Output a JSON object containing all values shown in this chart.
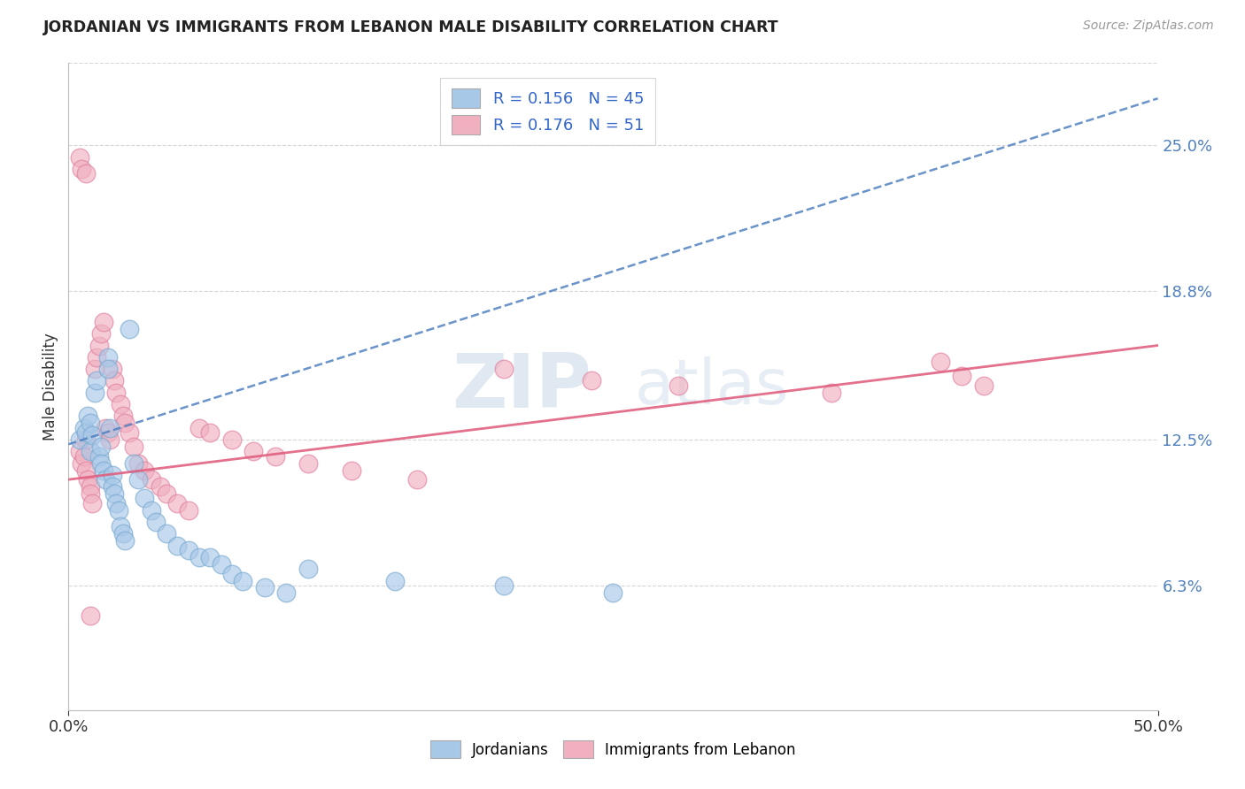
{
  "title": "JORDANIAN VS IMMIGRANTS FROM LEBANON MALE DISABILITY CORRELATION CHART",
  "source": "Source: ZipAtlas.com",
  "ylabel": "Male Disability",
  "y_ticks": [
    0.063,
    0.125,
    0.188,
    0.25
  ],
  "y_tick_labels": [
    "6.3%",
    "12.5%",
    "18.8%",
    "25.0%"
  ],
  "xlim": [
    0.0,
    0.5
  ],
  "ylim": [
    0.01,
    0.285
  ],
  "series1_name": "Jordanians",
  "series1_color": "#a8c8e8",
  "series1_edge_color": "#7aaad0",
  "series1_line_color": "#5080c0",
  "series1_line_style": "--",
  "series1_R": 0.156,
  "series1_N": 45,
  "series2_name": "Immigrants from Lebanon",
  "series2_color": "#f0b0c0",
  "series2_edge_color": "#e080a0",
  "series2_line_color": "#e06080",
  "series2_line_style": "-",
  "series2_R": 0.176,
  "series2_N": 51,
  "watermark_top": "ZIP",
  "watermark_bottom": "atlas",
  "background_color": "#ffffff",
  "grid_color": "#cccccc",
  "tick_color": "#5080c0",
  "jordanians_x": [
    0.005,
    0.007,
    0.008,
    0.009,
    0.01,
    0.01,
    0.011,
    0.012,
    0.013,
    0.014,
    0.015,
    0.015,
    0.016,
    0.017,
    0.018,
    0.018,
    0.019,
    0.02,
    0.02,
    0.021,
    0.022,
    0.023,
    0.024,
    0.025,
    0.026,
    0.028,
    0.03,
    0.032,
    0.035,
    0.038,
    0.04,
    0.045,
    0.05,
    0.055,
    0.06,
    0.065,
    0.07,
    0.075,
    0.08,
    0.09,
    0.1,
    0.11,
    0.15,
    0.2,
    0.25
  ],
  "jordanians_y": [
    0.125,
    0.13,
    0.128,
    0.135,
    0.132,
    0.12,
    0.127,
    0.145,
    0.15,
    0.118,
    0.122,
    0.115,
    0.112,
    0.108,
    0.16,
    0.155,
    0.13,
    0.11,
    0.105,
    0.102,
    0.098,
    0.095,
    0.088,
    0.085,
    0.082,
    0.172,
    0.115,
    0.108,
    0.1,
    0.095,
    0.09,
    0.085,
    0.08,
    0.078,
    0.075,
    0.075,
    0.072,
    0.068,
    0.065,
    0.062,
    0.06,
    0.07,
    0.065,
    0.063,
    0.06
  ],
  "lebanon_x": [
    0.005,
    0.006,
    0.007,
    0.008,
    0.008,
    0.009,
    0.01,
    0.01,
    0.011,
    0.012,
    0.013,
    0.014,
    0.015,
    0.016,
    0.017,
    0.018,
    0.019,
    0.02,
    0.021,
    0.022,
    0.024,
    0.025,
    0.026,
    0.028,
    0.03,
    0.032,
    0.035,
    0.038,
    0.042,
    0.045,
    0.05,
    0.055,
    0.06,
    0.065,
    0.075,
    0.085,
    0.095,
    0.11,
    0.13,
    0.16,
    0.2,
    0.24,
    0.28,
    0.35,
    0.4,
    0.41,
    0.42,
    0.005,
    0.006,
    0.008,
    0.01
  ],
  "lebanon_y": [
    0.12,
    0.115,
    0.118,
    0.112,
    0.125,
    0.108,
    0.105,
    0.102,
    0.098,
    0.155,
    0.16,
    0.165,
    0.17,
    0.175,
    0.13,
    0.128,
    0.125,
    0.155,
    0.15,
    0.145,
    0.14,
    0.135,
    0.132,
    0.128,
    0.122,
    0.115,
    0.112,
    0.108,
    0.105,
    0.102,
    0.098,
    0.095,
    0.13,
    0.128,
    0.125,
    0.12,
    0.118,
    0.115,
    0.112,
    0.108,
    0.155,
    0.15,
    0.148,
    0.145,
    0.158,
    0.152,
    0.148,
    0.245,
    0.24,
    0.238,
    0.05
  ]
}
